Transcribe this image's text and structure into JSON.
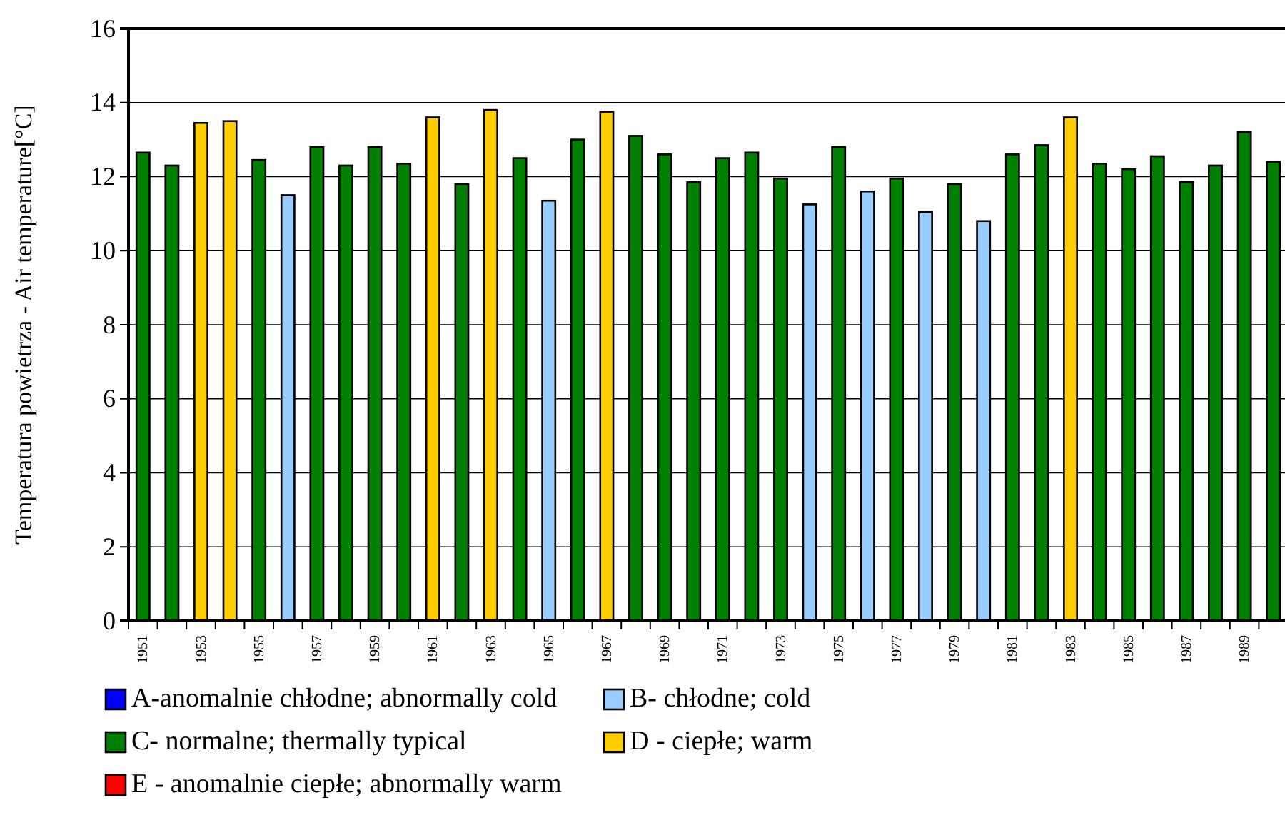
{
  "chart_data": {
    "type": "bar",
    "ylabel": "Temperatura powietrza - Air temperature[°C]",
    "categories": [
      "1951",
      null,
      "1953",
      null,
      "1955",
      null,
      "1957",
      null,
      "1959",
      null,
      "1961",
      null,
      "1963",
      null,
      "1965",
      null,
      "1967",
      null,
      "1969",
      null,
      "1971",
      null,
      "1973",
      null,
      "1975",
      null,
      "1977",
      null,
      "1979",
      null,
      "1981",
      null,
      "1983",
      null,
      "1985",
      null,
      "1987",
      null,
      "1989",
      null
    ],
    "series": [
      {
        "name": "A-anomalnie chłodne; abnormally cold",
        "color": "#0000ff",
        "values": [
          null,
          null,
          null,
          null,
          null,
          null,
          null,
          null,
          null,
          null,
          null,
          null,
          null,
          null,
          null,
          null,
          null,
          null,
          null,
          null,
          null,
          null,
          null,
          null,
          null,
          null,
          null,
          null,
          null,
          null,
          null,
          null,
          null,
          null,
          null,
          null,
          null,
          null,
          null,
          null
        ]
      },
      {
        "name": "B- chłodne; cold",
        "color": "#99ccff",
        "values": [
          null,
          null,
          null,
          null,
          null,
          11.5,
          null,
          null,
          null,
          null,
          null,
          null,
          null,
          null,
          11.35,
          null,
          null,
          null,
          null,
          null,
          null,
          null,
          null,
          11.25,
          null,
          11.6,
          null,
          11.05,
          null,
          10.8,
          null,
          null,
          null,
          null,
          null,
          null,
          null,
          null,
          null,
          null
        ]
      },
      {
        "name": "C- normalne; thermally typical",
        "color": "#008000",
        "values": [
          12.65,
          12.3,
          null,
          null,
          12.45,
          null,
          12.8,
          12.3,
          12.8,
          12.35,
          null,
          11.8,
          null,
          12.5,
          null,
          13.0,
          null,
          13.1,
          12.6,
          11.85,
          12.5,
          12.65,
          11.95,
          null,
          12.8,
          null,
          11.95,
          null,
          11.8,
          null,
          12.6,
          12.85,
          null,
          12.35,
          12.2,
          12.55,
          11.85,
          12.3,
          13.2,
          12.4
        ]
      },
      {
        "name": "D - ciepłe; warm",
        "color": "#ffcc00",
        "values": [
          null,
          null,
          13.45,
          13.5,
          null,
          null,
          null,
          null,
          null,
          null,
          13.6,
          null,
          13.8,
          null,
          null,
          null,
          13.75,
          null,
          null,
          null,
          null,
          null,
          null,
          null,
          null,
          null,
          null,
          null,
          null,
          null,
          null,
          null,
          13.6,
          null,
          null,
          null,
          null,
          null,
          null,
          null
        ]
      },
      {
        "name": "E - anomalnie ciepłe; abnormally warm",
        "color": "#ff0000",
        "values": [
          null,
          null,
          null,
          null,
          null,
          null,
          null,
          null,
          null,
          null,
          null,
          null,
          null,
          null,
          null,
          null,
          null,
          null,
          null,
          null,
          null,
          null,
          null,
          null,
          null,
          null,
          null,
          null,
          null,
          null,
          null,
          null,
          null,
          null,
          null,
          null,
          null,
          null,
          null,
          null
        ]
      }
    ],
    "ylim": [
      0,
      16
    ],
    "yticks": [
      0,
      2,
      4,
      6,
      8,
      10,
      12,
      14,
      16
    ],
    "grid": "y",
    "legend": "bottom"
  }
}
